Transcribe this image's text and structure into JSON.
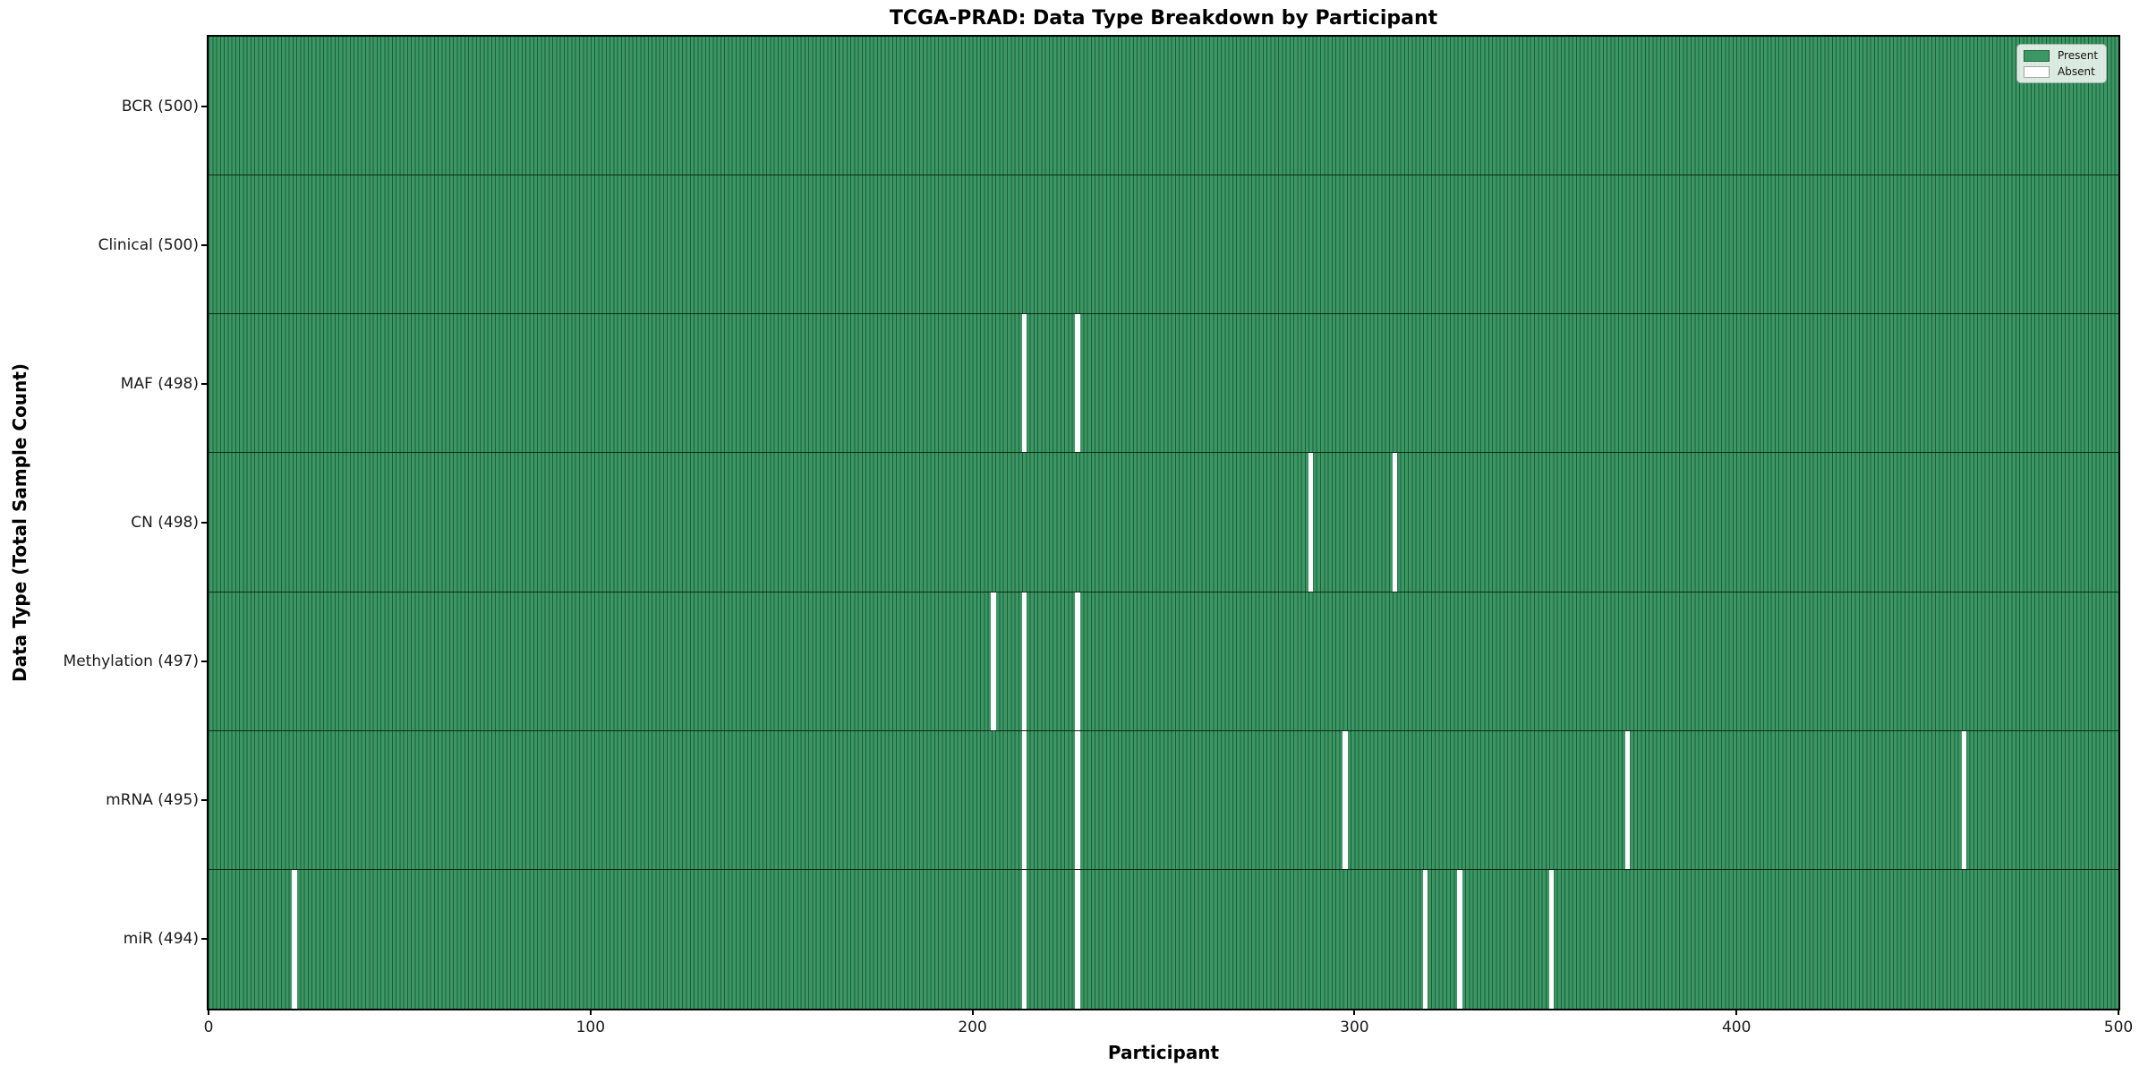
{
  "chart_data": {
    "type": "heatmap",
    "title": "TCGA-PRAD: Data Type Breakdown by Participant",
    "xlabel": "Participant",
    "ylabel": "Data Type (Total Sample Count)",
    "x_range": [
      0,
      500
    ],
    "x_ticks": [
      0,
      100,
      200,
      300,
      400,
      500
    ],
    "n_participants": 500,
    "grid": false,
    "rows": [
      {
        "name": "BCR",
        "label": "BCR (500)",
        "total": 500,
        "absent_participants": []
      },
      {
        "name": "Clinical",
        "label": "Clinical (500)",
        "total": 500,
        "absent_participants": []
      },
      {
        "name": "MAF",
        "label": "MAF (498)",
        "total": 498,
        "absent_participants": [
          213,
          227
        ]
      },
      {
        "name": "CN",
        "label": "CN (498)",
        "total": 498,
        "absent_participants": [
          288,
          310
        ]
      },
      {
        "name": "Methylation",
        "label": "Methylation (497)",
        "total": 497,
        "absent_participants": [
          205,
          213,
          227
        ]
      },
      {
        "name": "mRNA",
        "label": "mRNA (495)",
        "total": 495,
        "absent_participants": [
          213,
          227,
          297,
          371,
          459
        ]
      },
      {
        "name": "miR",
        "label": "miR (494)",
        "total": 494,
        "absent_participants": [
          22,
          213,
          227,
          318,
          327,
          351
        ]
      }
    ],
    "legend": {
      "position": "upper right",
      "entries": [
        {
          "label": "Present",
          "color": "#3b9764"
        },
        {
          "label": "Absent",
          "color": "#ffffff"
        }
      ]
    },
    "colors": {
      "present_fill": "#3b9764",
      "cell_edge": "#1d5c38",
      "absent_fill": "#ffffff",
      "axis": "#000000",
      "background": "#ffffff"
    }
  }
}
